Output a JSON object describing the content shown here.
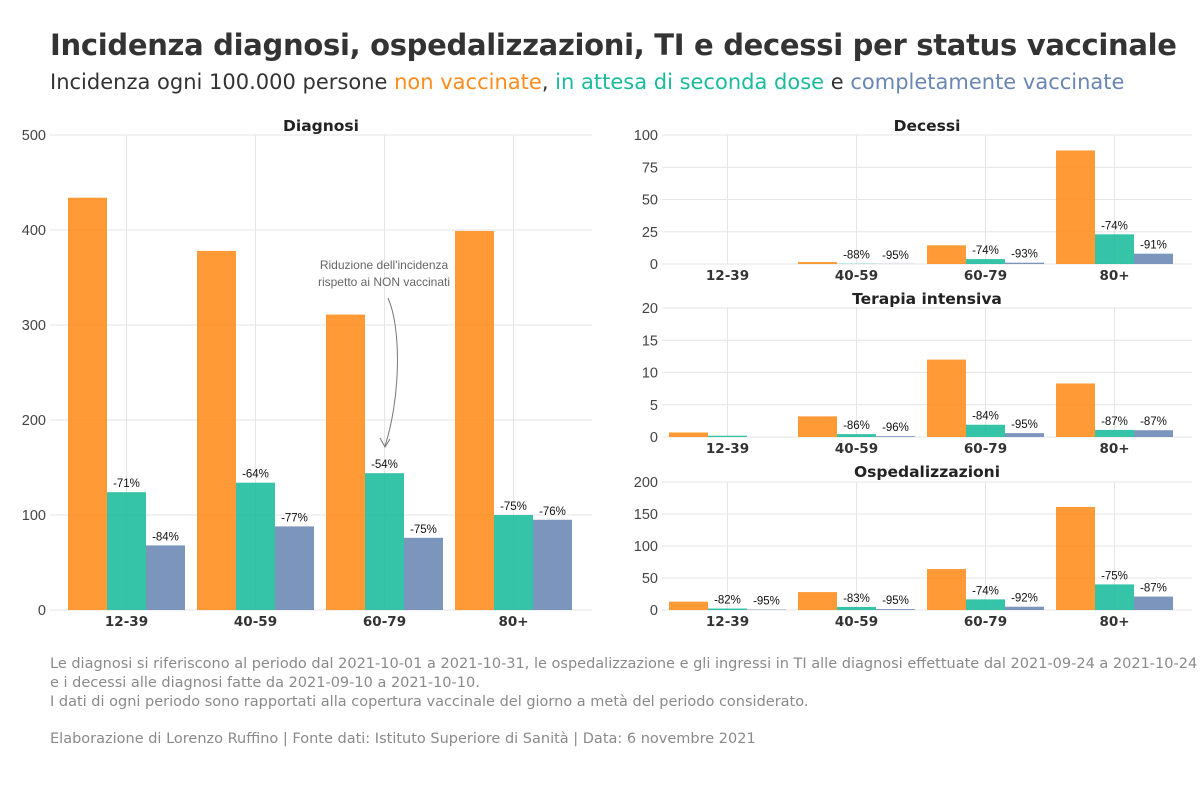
{
  "header": {
    "title": "Incidenza diagnosi, ospedalizzazioni, TI e decessi per status vaccinale",
    "subtitle_prefix": "Incidenza ogni 100.000 persone ",
    "status_unvaccinated": "non vaccinate",
    "sep1": ", ",
    "status_partial": "in attesa di seconda dose",
    "sep2": " e ",
    "status_full": "completamente vaccinate"
  },
  "colors": {
    "unvaccinated": "#FF8C1A",
    "partial": "#1ABC9C",
    "full": "#6A86B4"
  },
  "chart_data": [
    {
      "type": "bar",
      "title": "Diagnosi",
      "categories": [
        "12-39",
        "40-59",
        "60-79",
        "80+"
      ],
      "ylim": [
        0,
        500
      ],
      "yticks": [
        0,
        100,
        200,
        300,
        400,
        500
      ],
      "series": [
        {
          "key": "unvaccinated",
          "values": [
            434,
            378,
            311,
            399
          ]
        },
        {
          "key": "partial",
          "values": [
            124,
            134,
            144,
            100
          ]
        },
        {
          "key": "full",
          "values": [
            68,
            88,
            76,
            95
          ]
        }
      ],
      "labels_partial": [
        "-71%",
        "-64%",
        "-54%",
        "-75%"
      ],
      "labels_full": [
        "-84%",
        "-77%",
        "-75%",
        "-76%"
      ],
      "annotation": [
        "Riduzione dell'incidenza",
        "rispetto ai NON vaccinati"
      ],
      "grid": true
    },
    {
      "type": "bar",
      "title": "Decessi",
      "categories": [
        "12-39",
        "40-59",
        "60-79",
        "80+"
      ],
      "ylim": [
        0,
        100
      ],
      "yticks": [
        0,
        25,
        50,
        75,
        100
      ],
      "series": [
        {
          "key": "unvaccinated",
          "values": [
            0,
            1.5,
            14.5,
            88
          ]
        },
        {
          "key": "partial",
          "values": [
            0,
            0.2,
            3.8,
            23
          ]
        },
        {
          "key": "full",
          "values": [
            0,
            0.1,
            1,
            8
          ]
        }
      ],
      "labels_partial": [
        "",
        "-88%",
        "-74%",
        "-74%"
      ],
      "labels_full": [
        "",
        "-95%",
        "-93%",
        "-91%"
      ],
      "grid": true
    },
    {
      "type": "bar",
      "title": "Terapia intensiva",
      "categories": [
        "12-39",
        "40-59",
        "60-79",
        "80+"
      ],
      "ylim": [
        0,
        20
      ],
      "yticks": [
        0,
        5,
        10,
        15,
        20
      ],
      "series": [
        {
          "key": "unvaccinated",
          "values": [
            0.7,
            3.2,
            12,
            8.3
          ]
        },
        {
          "key": "partial",
          "values": [
            0.2,
            0.45,
            1.9,
            1.1
          ]
        },
        {
          "key": "full",
          "values": [
            0,
            0.13,
            0.6,
            1.05
          ]
        }
      ],
      "labels_partial": [
        "",
        "-86%",
        "-84%",
        "-87%"
      ],
      "labels_full": [
        "",
        "-96%",
        "-95%",
        "-87%"
      ],
      "grid": true
    },
    {
      "type": "bar",
      "title": "Ospedalizzazioni",
      "categories": [
        "12-39",
        "40-59",
        "60-79",
        "80+"
      ],
      "ylim": [
        0,
        200
      ],
      "yticks": [
        0,
        50,
        100,
        150,
        200
      ],
      "series": [
        {
          "key": "unvaccinated",
          "values": [
            13,
            28,
            64,
            161
          ]
        },
        {
          "key": "partial",
          "values": [
            2.3,
            4.8,
            16.6,
            40
          ]
        },
        {
          "key": "full",
          "values": [
            0.7,
            1.4,
            5.1,
            21
          ]
        }
      ],
      "labels_partial": [
        "-82%",
        "-83%",
        "-74%",
        "-75%"
      ],
      "labels_full": [
        "-95%",
        "-95%",
        "-92%",
        "-87%"
      ],
      "grid": true
    }
  ],
  "footer": {
    "notes": [
      "Le diagnosi si riferiscono al periodo dal 2021-10-01 a 2021-10-31, le ospedalizzazione e gli ingressi in TI alle diagnosi effettuate dal 2021-09-24 a 2021-10-24",
      "e i decessi alle diagnosi fatte da 2021-09-10 a 2021-10-10.",
      "I dati di ogni periodo sono rapportati alla copertura vaccinale del giorno a metà del periodo considerato."
    ],
    "credits": "Elaborazione di Lorenzo Ruffino | Fonte dati: Istituto Superiore di Sanità | Data: 6 novembre 2021"
  }
}
